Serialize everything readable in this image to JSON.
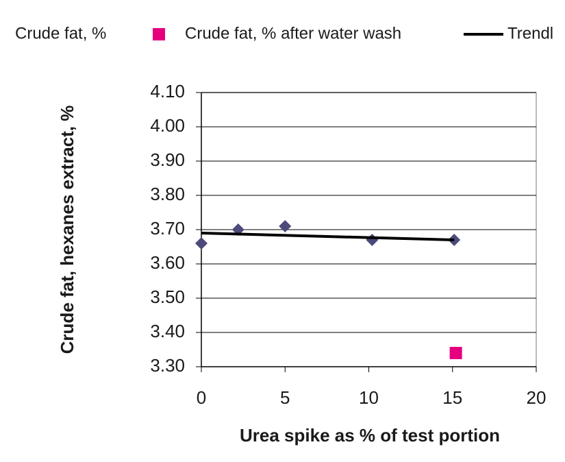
{
  "chart_data": {
    "type": "scatter",
    "x_label": "Urea spike as % of test portion",
    "y_label": "Crude fat, hexanes extract, %",
    "series": [
      {
        "name": "Crude fat, %",
        "color": "#4b4a7a",
        "marker": "diamond",
        "x": [
          0,
          2.2,
          5,
          10.2,
          15.1
        ],
        "values": [
          3.66,
          3.7,
          3.71,
          3.67,
          3.67
        ]
      },
      {
        "name": "Crude fat, % after water wash",
        "color": "#e6007e",
        "marker": "square",
        "x": [
          15.2
        ],
        "values": [
          3.34
        ]
      },
      {
        "name": "Trendl",
        "color": "#000000",
        "marker": "line",
        "x": [
          0,
          15.1
        ],
        "values": [
          3.69,
          3.67
        ]
      }
    ],
    "xlim": [
      0,
      20
    ],
    "xticks": [
      0,
      5,
      10,
      15,
      20
    ],
    "ylim": [
      3.3,
      4.1
    ],
    "yticks": [
      {
        "value": 3.3,
        "label": "3.30"
      },
      {
        "value": 3.4,
        "label": "3.40"
      },
      {
        "value": 3.5,
        "label": "3.50"
      },
      {
        "value": 3.6,
        "label": "3.60"
      },
      {
        "value": 3.7,
        "label": "3.70"
      },
      {
        "value": 3.8,
        "label": "3.80"
      },
      {
        "value": 3.9,
        "label": "3.90"
      },
      {
        "value": 4.0,
        "label": "4.00"
      },
      {
        "value": 4.1,
        "label": "4.10"
      }
    ],
    "grid": true,
    "legend": "top"
  }
}
